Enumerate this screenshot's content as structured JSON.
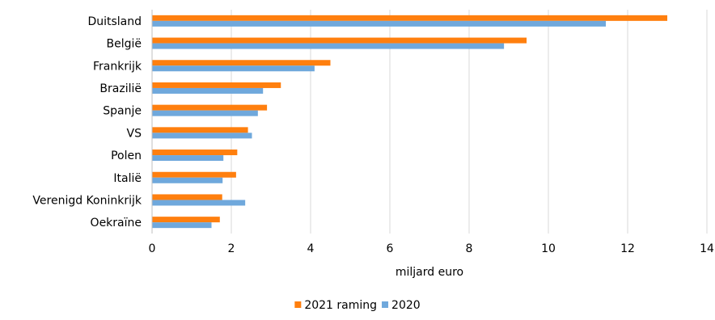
{
  "chart_data": {
    "type": "bar",
    "orientation": "horizontal",
    "categories": [
      "Duitsland",
      "België",
      "Frankrijk",
      "Brazilië",
      "Spanje",
      "VS",
      "Polen",
      "Italië",
      "Verenigd Koninkrijk",
      "Oekraïne"
    ],
    "series": [
      {
        "name": "2021 raming",
        "color": "#FF7F0E",
        "values": [
          13.0,
          9.45,
          4.5,
          3.25,
          2.9,
          2.42,
          2.15,
          2.12,
          1.77,
          1.71
        ]
      },
      {
        "name": "2020",
        "color": "#6FA8DC",
        "values": [
          11.45,
          8.88,
          4.1,
          2.8,
          2.67,
          2.52,
          1.8,
          1.78,
          2.35,
          1.5
        ]
      }
    ],
    "xlabel": "miljard euro",
    "xlim": [
      0,
      14
    ],
    "xticks": [
      0,
      2,
      4,
      6,
      8,
      10,
      12,
      14
    ],
    "grid": true,
    "legend": "bottom"
  }
}
